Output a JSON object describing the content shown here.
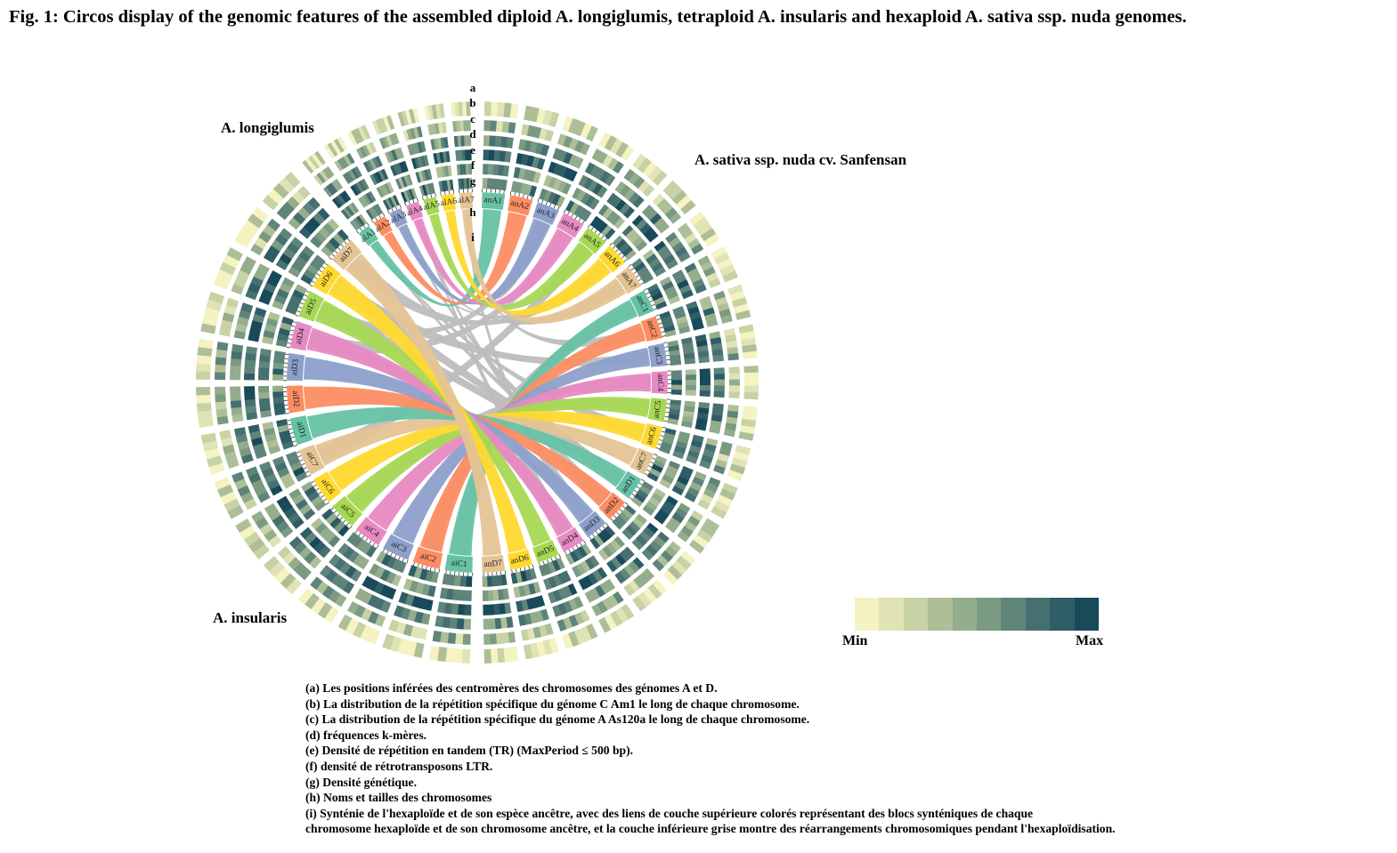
{
  "title": "Fig. 1: Circos display of the genomic features of the assembled diploid A. longiglumis, tetraploid A. insularis and hexaploid A. sativa ssp. nuda genomes.",
  "species": {
    "longiglumis": "A. longiglumis",
    "sativa": "A. sativa ssp. nuda cv. Sanfensan",
    "insularis": "A. insularis"
  },
  "track_letters": [
    "a",
    "b",
    "c",
    "d",
    "e",
    "f",
    "g",
    "h",
    "i"
  ],
  "chromosomes": {
    "longiglumis": [
      "alA1",
      "alA2",
      "alA3",
      "alA4",
      "alA5",
      "alA6",
      "alA7"
    ],
    "insularis": [
      "aiC1",
      "aiC2",
      "aiC3",
      "aiC4",
      "aiC5",
      "aiC6",
      "aiC7",
      "aiD1",
      "aiD2",
      "aiD3",
      "aiD4",
      "aiD5",
      "aiD6",
      "aiD7"
    ],
    "sativa": [
      "anA1",
      "anA2",
      "anA3",
      "anA4",
      "anA5",
      "anA6",
      "anA7",
      "anC1",
      "anC2",
      "anC3",
      "anC4",
      "anC5",
      "anC6",
      "anC7",
      "anD1",
      "anD2",
      "anD3",
      "anD4",
      "anD5",
      "anD6",
      "anD7"
    ]
  },
  "chromosome_colors": [
    "#66c2a5",
    "#fc8d62",
    "#8da0cb",
    "#e78ac3",
    "#a6d854",
    "#ffd92f",
    "#e5c494"
  ],
  "colorscale": {
    "min_label": "Min",
    "max_label": "Max",
    "colors": [
      "#f4f3c1",
      "#dfe3b5",
      "#c7d2a5",
      "#aebf98",
      "#94ad8c",
      "#7a9a81",
      "#5f8479",
      "#466f70",
      "#2f5d66",
      "#184a59"
    ]
  },
  "legend": [
    "(a) Les positions inférées des centromères des chromosomes des génomes A et D.",
    "(b) La distribution de la répétition spécifique du génome C Am1 le long de chaque chromosome.",
    "(c) La distribution de la répétition spécifique du génome A As120a le long de chaque chromosome.",
    "(d) fréquences k-mères.",
    "(e) Densité de répétition en tandem (TR) (MaxPeriod ≤ 500 bp).",
    "(f) densité de rétrotransposons LTR.",
    "(g) Densité génétique.",
    "(h) Noms et tailles des chromosomes",
    "(i) Synténie de l'hexaploïde et de son espèce ancêtre, avec des liens de couche supérieure colorés représentant des blocs synténiques de chaque",
    "chromosome hexaploïde et de son chromosome ancêtre, et la couche inférieure grise montre des réarrangements chromosomiques pendant l'hexaploïdisation."
  ]
}
